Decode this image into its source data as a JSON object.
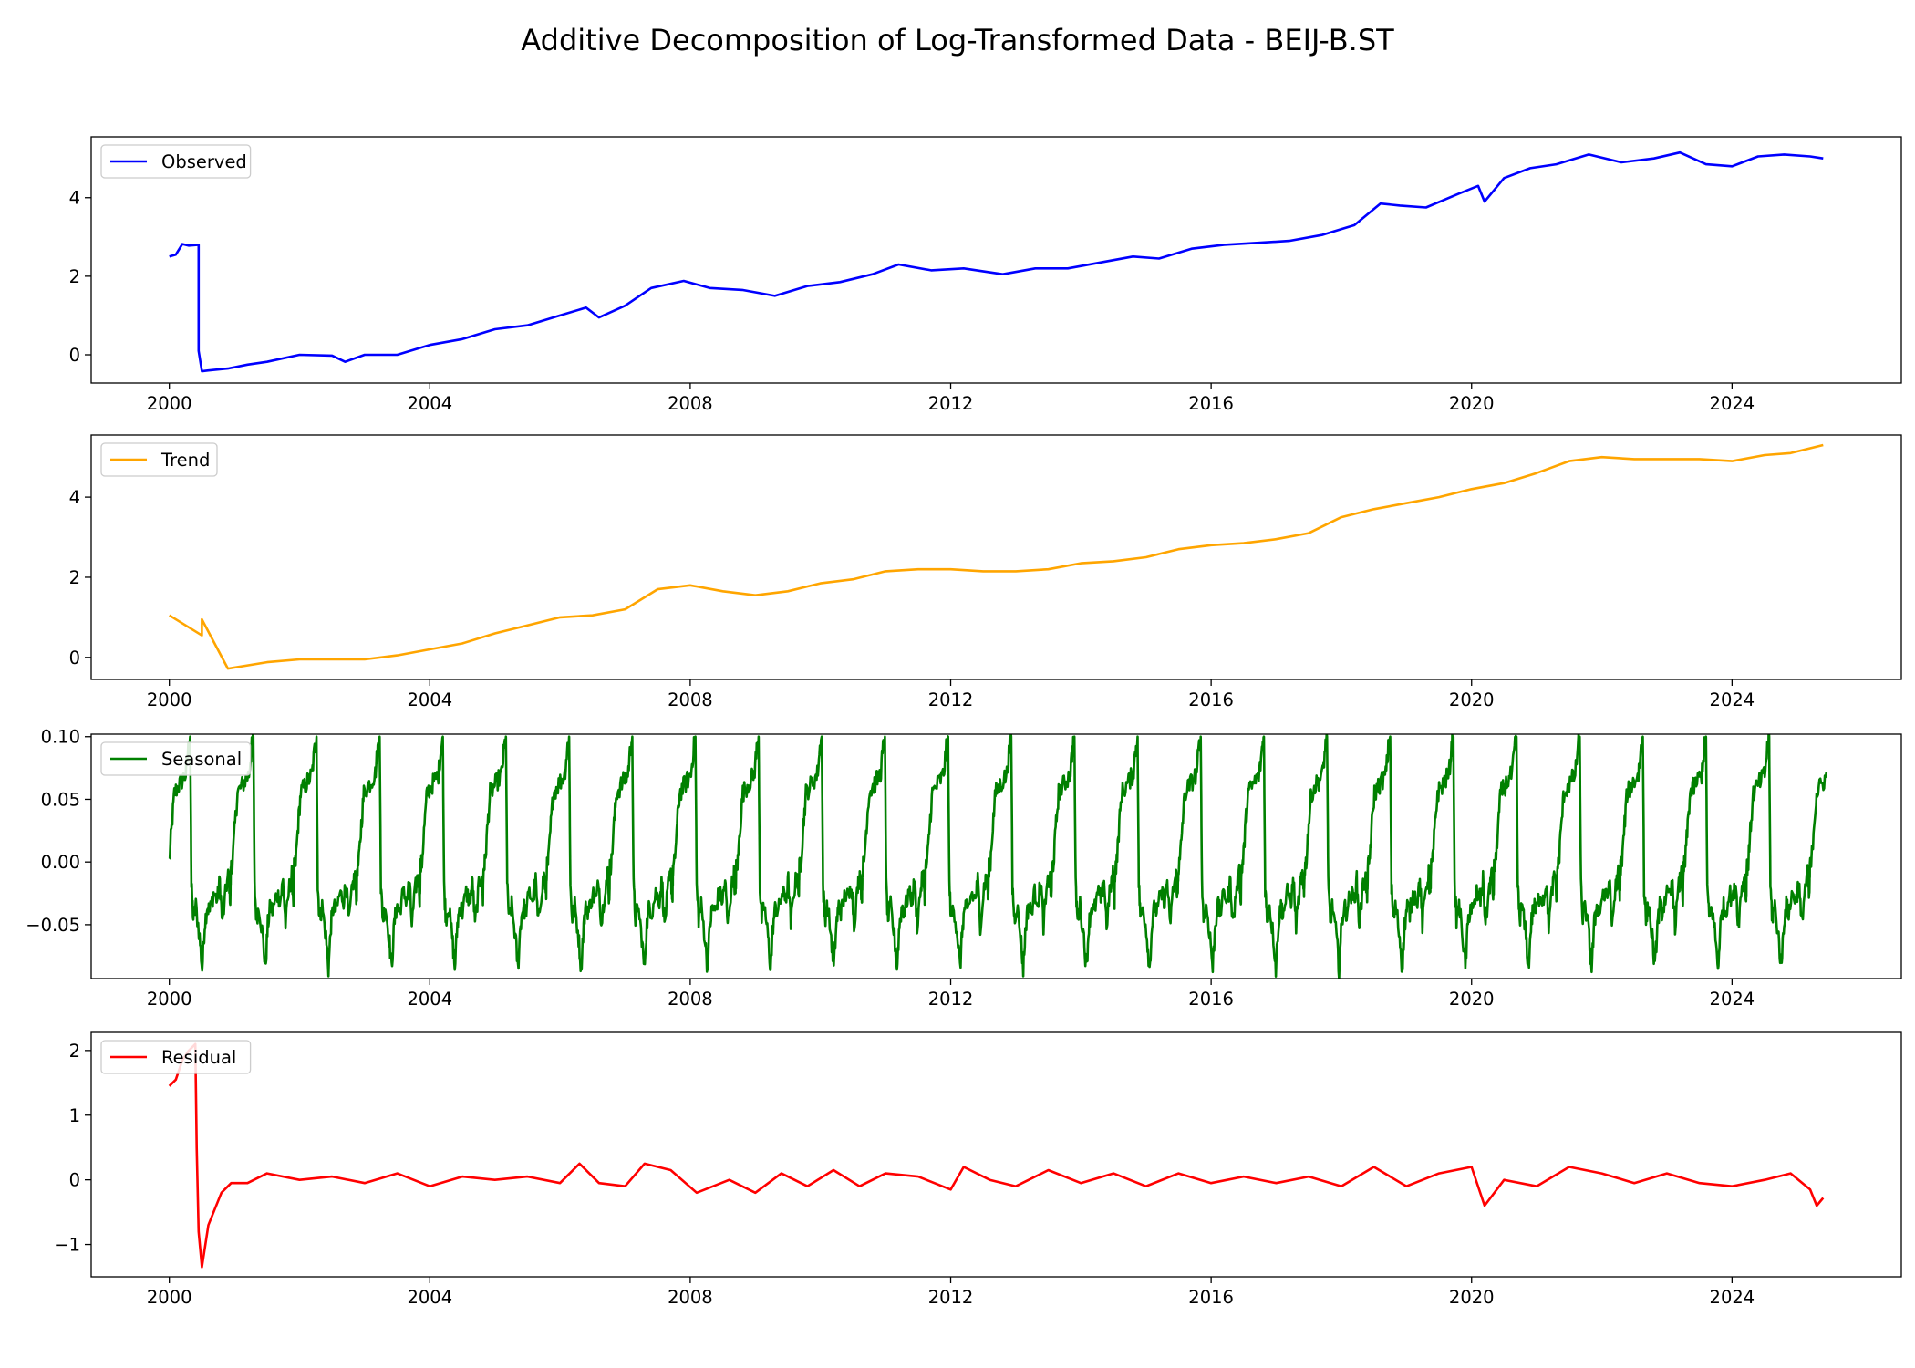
{
  "title": "Additive Decomposition of Log-Transformed Data - BEIJ-B.ST",
  "chart_data": [
    {
      "type": "line",
      "name": "Observed",
      "color": "#0000ff",
      "legend": "upper left",
      "xlim": [
        1998.8,
        2026.6
      ],
      "ylim": [
        -0.72,
        5.55
      ],
      "x_ticks": [
        2000,
        2004,
        2008,
        2012,
        2016,
        2020,
        2024
      ],
      "y_ticks": [
        {
          "value": 0,
          "label": "0"
        },
        {
          "value": 2,
          "label": "2"
        },
        {
          "value": 4,
          "label": "4"
        }
      ],
      "x": [
        2000.0,
        2000.1,
        2000.2,
        2000.3,
        2000.45,
        2000.45,
        2000.5,
        2000.6,
        2000.9,
        2001.2,
        2001.5,
        2002.0,
        2002.5,
        2002.7,
        2003.0,
        2003.5,
        2004.0,
        2004.5,
        2005.0,
        2005.5,
        2006.0,
        2006.4,
        2006.6,
        2007.0,
        2007.4,
        2007.9,
        2008.3,
        2008.8,
        2009.3,
        2009.8,
        2010.3,
        2010.8,
        2011.2,
        2011.7,
        2012.2,
        2012.8,
        2013.3,
        2013.8,
        2014.3,
        2014.8,
        2015.2,
        2015.7,
        2016.2,
        2016.7,
        2017.2,
        2017.7,
        2018.2,
        2018.6,
        2018.9,
        2019.3,
        2019.8,
        2020.1,
        2020.2,
        2020.5,
        2020.9,
        2021.3,
        2021.8,
        2022.3,
        2022.8,
        2023.2,
        2023.6,
        2024.0,
        2024.4,
        2024.8,
        2025.2,
        2025.4
      ],
      "values": [
        2.5,
        2.55,
        2.82,
        2.78,
        2.8,
        0.1,
        -0.42,
        -0.4,
        -0.35,
        -0.25,
        -0.18,
        0.0,
        -0.02,
        -0.18,
        0.0,
        0.0,
        0.25,
        0.4,
        0.65,
        0.75,
        1.0,
        1.2,
        0.95,
        1.25,
        1.7,
        1.88,
        1.7,
        1.65,
        1.5,
        1.75,
        1.85,
        2.05,
        2.3,
        2.15,
        2.2,
        2.05,
        2.2,
        2.2,
        2.35,
        2.5,
        2.45,
        2.7,
        2.8,
        2.85,
        2.9,
        3.05,
        3.3,
        3.85,
        3.8,
        3.75,
        4.1,
        4.3,
        3.9,
        4.5,
        4.75,
        4.85,
        5.1,
        4.9,
        5.0,
        5.15,
        4.85,
        4.8,
        5.05,
        5.1,
        5.05,
        5.0
      ]
    },
    {
      "type": "line",
      "name": "Trend",
      "color": "#ffa500",
      "legend": "upper left",
      "xlim": [
        1998.8,
        2026.6
      ],
      "ylim": [
        -0.55,
        5.55
      ],
      "x_ticks": [
        2000,
        2004,
        2008,
        2012,
        2016,
        2020,
        2024
      ],
      "y_ticks": [
        {
          "value": 0,
          "label": "0"
        },
        {
          "value": 2,
          "label": "2"
        },
        {
          "value": 4,
          "label": "4"
        }
      ],
      "x": [
        2000.0,
        2000.5,
        2000.5,
        2000.9,
        2001.2,
        2001.5,
        2002.0,
        2002.5,
        2003.0,
        2003.5,
        2004.0,
        2004.5,
        2005.0,
        2005.5,
        2006.0,
        2006.5,
        2007.0,
        2007.5,
        2008.0,
        2008.5,
        2009.0,
        2009.5,
        2010.0,
        2010.5,
        2011.0,
        2011.5,
        2012.0,
        2012.5,
        2013.0,
        2013.5,
        2014.0,
        2014.5,
        2015.0,
        2015.5,
        2016.0,
        2016.5,
        2017.0,
        2017.5,
        2018.0,
        2018.5,
        2019.0,
        2019.5,
        2020.0,
        2020.5,
        2021.0,
        2021.5,
        2022.0,
        2022.5,
        2023.0,
        2023.5,
        2024.0,
        2024.5,
        2024.9,
        2025.4
      ],
      "values": [
        1.05,
        0.55,
        0.95,
        -0.28,
        -0.2,
        -0.12,
        -0.05,
        -0.05,
        -0.05,
        0.05,
        0.2,
        0.35,
        0.6,
        0.8,
        1.0,
        1.05,
        1.2,
        1.7,
        1.8,
        1.65,
        1.55,
        1.65,
        1.85,
        1.95,
        2.15,
        2.2,
        2.2,
        2.15,
        2.15,
        2.2,
        2.35,
        2.4,
        2.5,
        2.7,
        2.8,
        2.85,
        2.95,
        3.1,
        3.5,
        3.7,
        3.85,
        4.0,
        4.2,
        4.35,
        4.6,
        4.9,
        5.0,
        4.95,
        4.95,
        4.95,
        4.9,
        5.05,
        5.1,
        5.3
      ]
    },
    {
      "type": "line",
      "name": "Seasonal",
      "color": "#008000",
      "legend": "upper left",
      "xlim": [
        1998.8,
        2026.6
      ],
      "ylim": [
        -0.093,
        0.102
      ],
      "x_ticks": [
        2000,
        2004,
        2008,
        2012,
        2016,
        2020,
        2024
      ],
      "y_ticks": [
        {
          "value": -0.05,
          "label": "−0.05"
        },
        {
          "value": 0.0,
          "label": "0.00"
        },
        {
          "value": 0.05,
          "label": "0.05"
        },
        {
          "value": 0.1,
          "label": "0.10"
        }
      ],
      "period": 0.97,
      "start": 2000.0,
      "end": 2025.45,
      "cycle_phase": [
        0.0,
        0.04,
        0.08,
        0.14,
        0.2,
        0.26,
        0.3,
        0.33,
        0.35,
        0.38,
        0.42,
        0.48,
        0.52,
        0.56,
        0.6,
        0.64,
        0.7,
        0.76,
        0.8,
        0.84,
        0.9,
        0.94,
        0.965,
        0.975,
        1.0
      ],
      "cycle_values": [
        0.0,
        0.03,
        0.055,
        0.06,
        0.065,
        0.07,
        0.09,
        0.1,
        -0.02,
        -0.045,
        -0.035,
        -0.06,
        -0.085,
        -0.05,
        -0.035,
        -0.04,
        -0.025,
        -0.03,
        -0.015,
        -0.05,
        -0.02,
        -0.01,
        -0.03,
        -0.005,
        0.0
      ]
    },
    {
      "type": "line",
      "name": "Residual",
      "color": "#ff0000",
      "legend": "upper left",
      "xlim": [
        1998.8,
        2026.6
      ],
      "ylim": [
        -1.5,
        2.28
      ],
      "x_ticks": [
        2000,
        2004,
        2008,
        2012,
        2016,
        2020,
        2024
      ],
      "y_ticks": [
        {
          "value": -1,
          "label": "−1"
        },
        {
          "value": 0,
          "label": "0"
        },
        {
          "value": 1,
          "label": "1"
        },
        {
          "value": 2,
          "label": "2"
        }
      ],
      "x": [
        2000.0,
        2000.1,
        2000.2,
        2000.3,
        2000.4,
        2000.42,
        2000.45,
        2000.5,
        2000.6,
        2000.8,
        2000.95,
        2001.2,
        2001.5,
        2002.0,
        2002.5,
        2003.0,
        2003.5,
        2004.0,
        2004.5,
        2005.0,
        2005.5,
        2006.0,
        2006.3,
        2006.6,
        2007.0,
        2007.3,
        2007.7,
        2008.1,
        2008.6,
        2009.0,
        2009.4,
        2009.8,
        2010.2,
        2010.6,
        2011.0,
        2011.5,
        2012.0,
        2012.2,
        2012.6,
        2013.0,
        2013.5,
        2014.0,
        2014.5,
        2015.0,
        2015.5,
        2016.0,
        2016.5,
        2017.0,
        2017.5,
        2018.0,
        2018.5,
        2019.0,
        2019.5,
        2020.0,
        2020.2,
        2020.5,
        2021.0,
        2021.5,
        2022.0,
        2022.5,
        2023.0,
        2023.5,
        2024.0,
        2024.5,
        2024.9,
        2025.2,
        2025.3,
        2025.4
      ],
      "values": [
        1.45,
        1.55,
        1.85,
        2.0,
        2.1,
        0.5,
        -0.8,
        -1.35,
        -0.7,
        -0.2,
        -0.05,
        -0.05,
        0.1,
        0.0,
        0.05,
        -0.05,
        0.1,
        -0.1,
        0.05,
        0.0,
        0.05,
        -0.05,
        0.25,
        -0.05,
        -0.1,
        0.25,
        0.15,
        -0.2,
        0.0,
        -0.2,
        0.1,
        -0.1,
        0.15,
        -0.1,
        0.1,
        0.05,
        -0.15,
        0.2,
        0.0,
        -0.1,
        0.15,
        -0.05,
        0.1,
        -0.1,
        0.1,
        -0.05,
        0.05,
        -0.05,
        0.05,
        -0.1,
        0.2,
        -0.1,
        0.1,
        0.2,
        -0.4,
        0.0,
        -0.1,
        0.2,
        0.1,
        -0.05,
        0.1,
        -0.05,
        -0.1,
        0.0,
        0.1,
        -0.15,
        -0.4,
        -0.28
      ]
    }
  ]
}
